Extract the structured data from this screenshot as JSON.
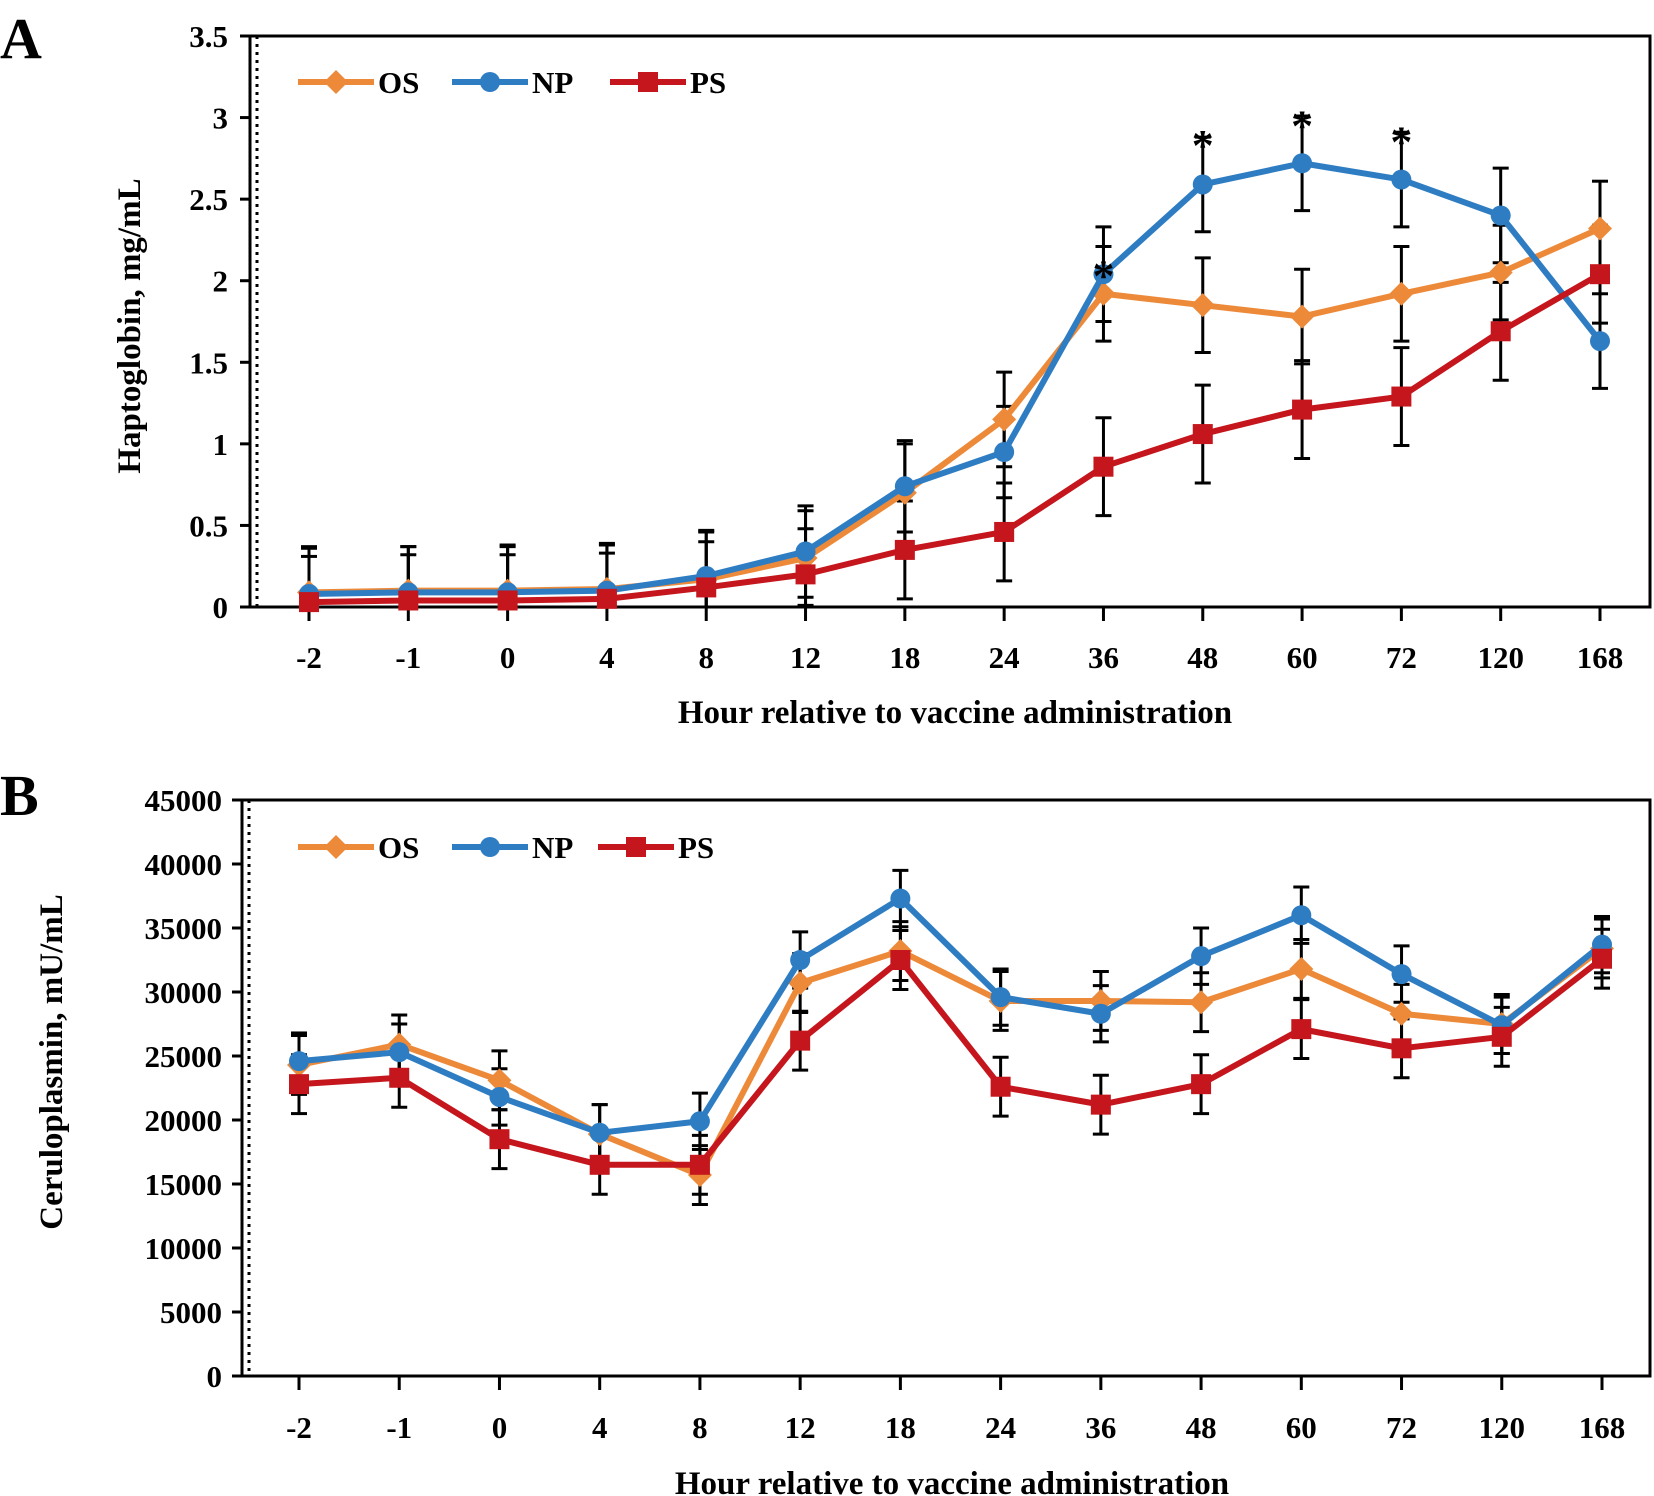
{
  "figure": {
    "colors": {
      "OS": "#ED8A3A",
      "NP": "#2E7DC3",
      "PS": "#C4161C",
      "axis": "#000000"
    }
  },
  "chart_data": [
    {
      "panel": "A",
      "type": "line",
      "ylabel": "Haptoglobin, mg/mL",
      "xlabel": "Hour relative to vaccine administration",
      "categories": [
        "-2",
        "-1",
        "0",
        "4",
        "8",
        "12",
        "18",
        "24",
        "36",
        "48",
        "60",
        "72",
        "120",
        "168"
      ],
      "ylim": [
        0,
        3.5
      ],
      "yticks": [
        0,
        0.5,
        1,
        1.5,
        2,
        2.5,
        3,
        3.5
      ],
      "ytick_labels": [
        "0",
        "0.5",
        "1",
        "1.5",
        "2",
        "2.5",
        "3",
        "3.5"
      ],
      "legend": [
        "OS",
        "NP",
        "PS"
      ],
      "legend_position": "top-left",
      "series": [
        {
          "name": "OS",
          "marker": "diamond",
          "values": [
            0.09,
            0.1,
            0.1,
            0.11,
            0.17,
            0.3,
            0.7,
            1.15,
            1.92,
            1.85,
            1.78,
            1.92,
            2.05,
            2.32
          ],
          "errors": [
            0.28,
            0.27,
            0.28,
            0.28,
            0.29,
            0.29,
            0.3,
            0.29,
            0.29,
            0.29,
            0.29,
            0.29,
            0.29,
            0.29
          ]
        },
        {
          "name": "NP",
          "marker": "circle",
          "values": [
            0.08,
            0.09,
            0.09,
            0.1,
            0.19,
            0.34,
            0.74,
            0.95,
            2.04,
            2.59,
            2.72,
            2.62,
            2.4,
            1.63
          ],
          "errors": [
            0.28,
            0.28,
            0.28,
            0.28,
            0.28,
            0.28,
            0.28,
            0.28,
            0.29,
            0.29,
            0.29,
            0.29,
            0.29,
            0.29
          ]
        },
        {
          "name": "PS",
          "marker": "square",
          "values": [
            0.03,
            0.04,
            0.04,
            0.05,
            0.12,
            0.2,
            0.35,
            0.46,
            0.86,
            1.06,
            1.21,
            1.29,
            1.69,
            2.04
          ],
          "errors": [
            0.28,
            0.28,
            0.28,
            0.28,
            0.28,
            0.28,
            0.3,
            0.3,
            0.3,
            0.3,
            0.3,
            0.3,
            0.3,
            0.3
          ]
        }
      ],
      "annotations": [
        {
          "text": "*",
          "category": "36",
          "value": 2.1
        },
        {
          "text": "*",
          "category": "48",
          "value": 2.9
        },
        {
          "text": "*",
          "category": "60",
          "value": 3.02
        },
        {
          "text": "*",
          "category": "72",
          "value": 2.92
        }
      ]
    },
    {
      "panel": "B",
      "type": "line",
      "ylabel": "Ceruloplasmin, mU/mL",
      "xlabel": "Hour relative to vaccine administration",
      "categories": [
        "-2",
        "-1",
        "0",
        "4",
        "8",
        "12",
        "18",
        "24",
        "36",
        "48",
        "60",
        "72",
        "120",
        "168"
      ],
      "ylim": [
        0,
        45000
      ],
      "yticks": [
        0,
        5000,
        10000,
        15000,
        20000,
        25000,
        30000,
        35000,
        40000,
        45000
      ],
      "ytick_labels": [
        "0",
        "5000",
        "10000",
        "15000",
        "20000",
        "25000",
        "30000",
        "35000",
        "40000",
        "45000"
      ],
      "legend": [
        "OS",
        "NP",
        "PS"
      ],
      "legend_position": "top-left",
      "series": [
        {
          "name": "OS",
          "marker": "diamond",
          "values": [
            24300,
            25900,
            23100,
            18900,
            15700,
            30700,
            33200,
            29300,
            29300,
            29200,
            31800,
            28300,
            27500,
            33400
          ],
          "errors": [
            2300,
            2300,
            2300,
            2300,
            2300,
            2300,
            2300,
            2300,
            2300,
            2300,
            2300,
            2300,
            2300,
            2300
          ]
        },
        {
          "name": "NP",
          "marker": "circle",
          "values": [
            24600,
            25300,
            21800,
            19000,
            19900,
            32500,
            37300,
            29600,
            28300,
            32800,
            36000,
            31400,
            27400,
            33700
          ],
          "errors": [
            2200,
            2200,
            2200,
            2200,
            2200,
            2200,
            2200,
            2200,
            2200,
            2200,
            2200,
            2200,
            2200,
            2200
          ]
        },
        {
          "name": "PS",
          "marker": "square",
          "values": [
            22800,
            23300,
            18500,
            16500,
            16500,
            26200,
            32500,
            22600,
            21200,
            22800,
            27100,
            25600,
            26500,
            32600
          ],
          "errors": [
            2300,
            2300,
            2300,
            2300,
            2300,
            2300,
            2300,
            2300,
            2300,
            2300,
            2300,
            2300,
            2300,
            2300
          ]
        }
      ],
      "annotations": []
    }
  ]
}
